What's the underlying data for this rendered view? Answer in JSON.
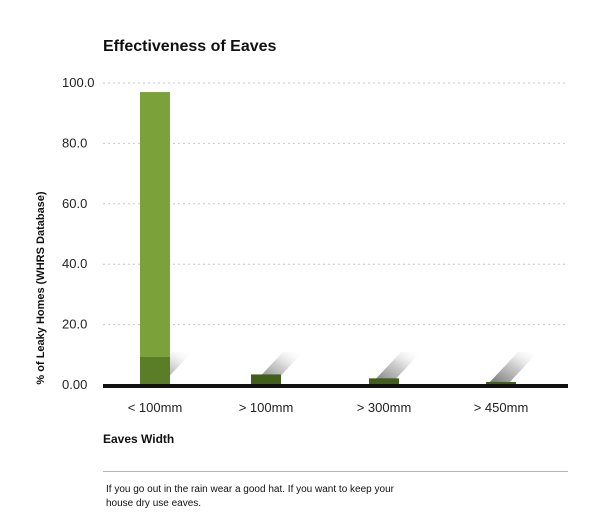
{
  "chart_data": {
    "type": "bar",
    "title": "Effectiveness of Eaves",
    "xlabel": "Eaves Width",
    "ylabel": "% of Leaky Homes (WHRS Database)",
    "categories": [
      "< 100mm",
      "> 100mm",
      "> 300mm",
      "> 450mm"
    ],
    "values": [
      97.0,
      3.5,
      2.2,
      1.0
    ],
    "ylim": [
      0,
      100
    ],
    "yticks": [
      "0.00",
      "20.0",
      "40.0",
      "60.0",
      "80.0",
      "100.0"
    ],
    "grid": true,
    "legend": "none"
  },
  "caption": "If you go out in the rain wear a good hat. If you want to keep your house dry use eaves.",
  "colors": {
    "bar": "#7ba23a",
    "bar_dark": "#3f5f1a",
    "axis": "#111111",
    "grid": "#c8c8c8"
  }
}
